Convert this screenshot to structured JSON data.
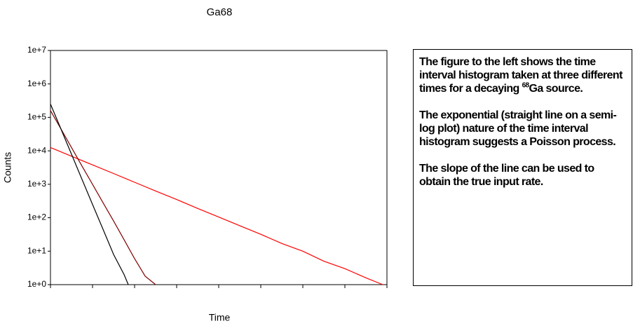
{
  "chart_data": {
    "type": "line",
    "title": "Ga68",
    "xlabel": "Time",
    "ylabel": "Counts",
    "log_y": true,
    "xlim": [
      0,
      8
    ],
    "xticks": [
      0,
      1,
      2,
      3,
      4,
      5,
      6,
      7,
      8
    ],
    "ylim": [
      1,
      10000000
    ],
    "yticks": [
      {
        "value": 1,
        "label": "1e+0"
      },
      {
        "value": 10,
        "label": "1e+1"
      },
      {
        "value": 100,
        "label": "1e+2"
      },
      {
        "value": 1000,
        "label": "1e+3"
      },
      {
        "value": 10000,
        "label": "1e+4"
      },
      {
        "value": 100000,
        "label": "1e+5"
      },
      {
        "value": 1000000,
        "label": "1e+6"
      },
      {
        "value": 10000000,
        "label": "1e+7"
      }
    ],
    "series": [
      {
        "color": "#ff0000",
        "x": [
          0,
          0.5,
          1,
          1.5,
          2,
          2.5,
          3,
          3.5,
          4,
          4.5,
          5,
          5.5,
          6,
          6.5,
          7,
          7.5,
          7.9
        ],
        "values": [
          12600,
          6900,
          3800,
          2100,
          1150,
          630,
          350,
          190,
          105,
          58,
          32,
          17,
          10,
          5,
          3,
          1.6,
          1
        ]
      },
      {
        "color": "#800000",
        "x": [
          0,
          0.25,
          0.5,
          0.75,
          1,
          1.25,
          1.5,
          1.75,
          2,
          2.25,
          2.5
        ],
        "values": [
          160000,
          45000,
          12600,
          3500,
          1000,
          280,
          80,
          22,
          6,
          1.8,
          1
        ]
      },
      {
        "color": "#000000",
        "x": [
          0,
          0.25,
          0.5,
          0.75,
          1,
          1.25,
          1.5,
          1.75,
          1.85
        ],
        "values": [
          250000,
          44700,
          7900,
          1400,
          250,
          45,
          8,
          2,
          1
        ]
      }
    ]
  },
  "textbox": {
    "paragraphs": [
      {
        "before": "The figure to the left shows the time interval histogram taken at three different times for a decaying ",
        "sup": "68",
        "after": "Ga source."
      },
      {
        "text": "The exponential (straight line on a semi-log plot) nature of the time interval histogram suggests a Poisson process."
      },
      {
        "text": "The slope of the line can be used to obtain the true input rate."
      }
    ]
  }
}
